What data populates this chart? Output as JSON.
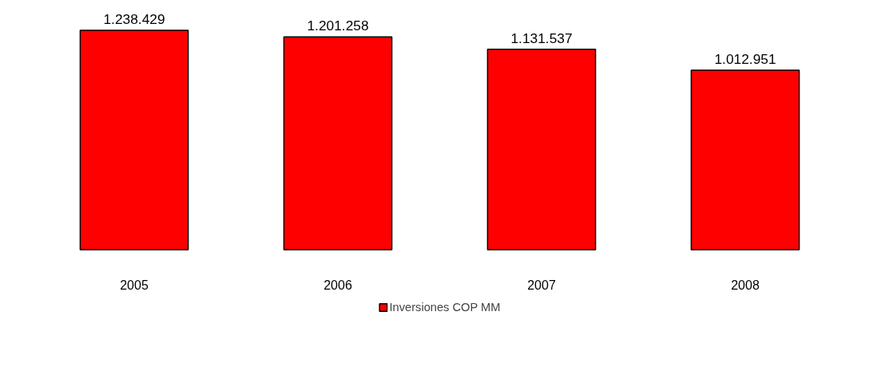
{
  "chart_data": {
    "type": "bar",
    "categories": [
      "2005",
      "2006",
      "2007",
      "2008"
    ],
    "series": [
      {
        "name": "Inversiones COP MM",
        "color": "#ff0000",
        "values": [
          1238429,
          1201258,
          1131537,
          1012951
        ],
        "value_labels": [
          "1.238.429",
          "1.201.258",
          "1.131.537",
          "1.012.951"
        ]
      }
    ],
    "tick_labels": "x",
    "legend": "bottom"
  }
}
